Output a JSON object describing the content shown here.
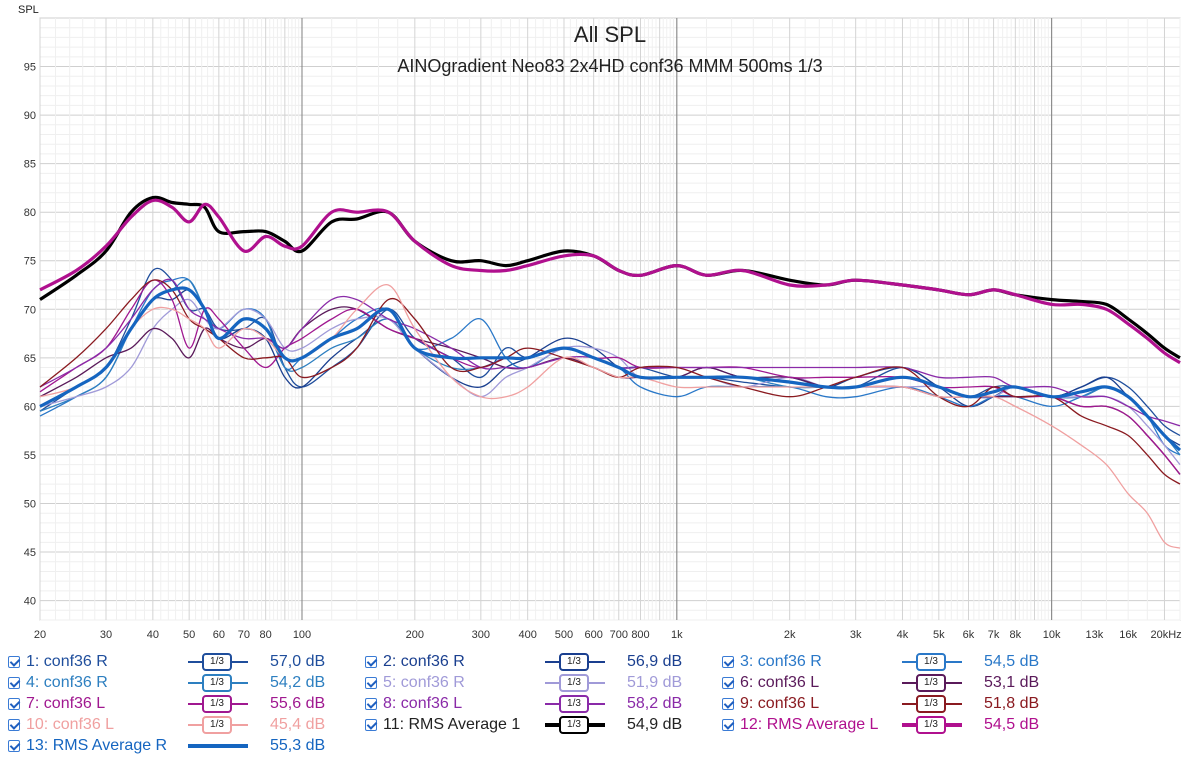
{
  "chart_data": {
    "type": "line",
    "title": "All SPL",
    "subtitle": "AINOgradient Neo83 2x4HD conf36 MMM 500ms 1/3",
    "ylabel": "SPL",
    "xlabel_unit": "Hz",
    "x_scale": "log",
    "xlim": [
      20,
      22000
    ],
    "ylim": [
      38,
      100
    ],
    "grid": true,
    "y_ticks": [
      40,
      45,
      50,
      55,
      60,
      65,
      70,
      75,
      80,
      85,
      90,
      95
    ],
    "x_ticks": [
      {
        "v": 20,
        "label": "20"
      },
      {
        "v": 30,
        "label": "30"
      },
      {
        "v": 40,
        "label": "40"
      },
      {
        "v": 50,
        "label": "50"
      },
      {
        "v": 60,
        "label": "60"
      },
      {
        "v": 70,
        "label": "70"
      },
      {
        "v": 80,
        "label": "80"
      },
      {
        "v": 100,
        "label": "100"
      },
      {
        "v": 200,
        "label": "200"
      },
      {
        "v": 300,
        "label": "300"
      },
      {
        "v": 400,
        "label": "400"
      },
      {
        "v": 500,
        "label": "500"
      },
      {
        "v": 600,
        "label": "600"
      },
      {
        "v": 700,
        "label": "700"
      },
      {
        "v": 800,
        "label": "800"
      },
      {
        "v": 1000,
        "label": "1k"
      },
      {
        "v": 2000,
        "label": "2k"
      },
      {
        "v": 3000,
        "label": "3k"
      },
      {
        "v": 4000,
        "label": "4k"
      },
      {
        "v": 5000,
        "label": "5k"
      },
      {
        "v": 6000,
        "label": "6k"
      },
      {
        "v": 7000,
        "label": "7k"
      },
      {
        "v": 8000,
        "label": "8k"
      },
      {
        "v": 10000,
        "label": "10k"
      },
      {
        "v": 13000,
        "label": "13k"
      },
      {
        "v": 16000,
        "label": "16k"
      },
      {
        "v": 20000,
        "label": "20kHz"
      }
    ],
    "x": [
      20,
      25,
      30,
      35,
      40,
      45,
      50,
      55,
      60,
      70,
      80,
      90,
      100,
      120,
      140,
      170,
      200,
      250,
      300,
      350,
      400,
      500,
      600,
      700,
      800,
      1000,
      1200,
      1500,
      2000,
      2500,
      3000,
      4000,
      5000,
      6000,
      7000,
      8000,
      10000,
      12000,
      14000,
      16000,
      18000,
      20000,
      22000
    ],
    "series": [
      {
        "name": "1: conf36 R",
        "color": "#1f4e9c",
        "width": 1.3,
        "values": [
          59.5,
          62,
          64,
          69,
          74,
          73,
          70,
          70,
          68,
          68,
          69,
          64,
          62,
          64,
          66,
          70,
          67,
          65,
          63,
          66,
          65,
          66,
          65,
          64,
          64,
          63,
          63,
          62.5,
          62,
          62,
          62,
          64,
          62,
          61,
          62,
          62,
          61,
          62,
          63,
          62,
          60,
          58,
          57
        ]
      },
      {
        "name": "2: conf36 R",
        "color": "#1a3f8f",
        "width": 1.3,
        "values": [
          60,
          62,
          64,
          68,
          71,
          71,
          72,
          70,
          67,
          68,
          67,
          63,
          62,
          65,
          67,
          69,
          66,
          63,
          62,
          64,
          65,
          67,
          66,
          64,
          63,
          63,
          64,
          63,
          63,
          62,
          63,
          64,
          62,
          60,
          61,
          62,
          61,
          62,
          63,
          61,
          59,
          57,
          56
        ]
      },
      {
        "name": "3: conf36 R",
        "color": "#2a78c8",
        "width": 1.3,
        "values": [
          59,
          61,
          63,
          68,
          72,
          73,
          73,
          70,
          68,
          70,
          69,
          64,
          65,
          67,
          69,
          70,
          66,
          67,
          69,
          65,
          64,
          66,
          65,
          64,
          62,
          61,
          62,
          62,
          62,
          61,
          61,
          62,
          61,
          60,
          61,
          61,
          60,
          61,
          62,
          61,
          59,
          56,
          55
        ]
      },
      {
        "name": "4: conf36 R",
        "color": "#2d7fc0",
        "width": 1.3,
        "values": [
          59.5,
          61,
          63,
          68,
          71,
          72,
          73,
          70,
          67,
          69,
          68,
          64,
          64,
          66,
          67,
          69,
          66,
          64,
          64,
          65,
          65,
          66,
          65,
          64,
          63,
          63,
          63,
          63,
          62,
          62,
          62,
          63,
          62,
          61,
          61,
          62,
          61,
          61,
          62,
          61,
          59,
          57,
          55
        ]
      },
      {
        "name": "5: conf36 R",
        "color": "#a09ad8",
        "width": 1.3,
        "values": [
          60,
          61,
          62,
          64,
          68,
          70,
          71,
          69,
          68,
          70,
          69,
          66,
          66,
          68,
          69,
          69,
          66,
          63,
          61,
          63,
          64,
          66,
          66,
          65,
          63,
          63,
          63,
          62,
          63,
          62,
          62,
          62,
          62,
          61,
          61,
          62,
          61,
          61,
          61,
          60,
          58,
          56,
          54
        ]
      },
      {
        "name": "6: conf36 L",
        "color": "#5a1a5a",
        "width": 1.3,
        "values": [
          61,
          63,
          65,
          66,
          68,
          67,
          65,
          68,
          67,
          66,
          67,
          66,
          68,
          70,
          70,
          68,
          67,
          66,
          65,
          64,
          64,
          65,
          64,
          63,
          63,
          63,
          64,
          63,
          63,
          62,
          62,
          62,
          61,
          61,
          61,
          61,
          61,
          60,
          60,
          59,
          57,
          55,
          53
        ]
      },
      {
        "name": "7: conf36 L",
        "color": "#a01890",
        "width": 1.3,
        "values": [
          61.5,
          64,
          66,
          70,
          73,
          71,
          66,
          70,
          69,
          66,
          64,
          66,
          67,
          69,
          70,
          68,
          67,
          65,
          64,
          65,
          65,
          66,
          65,
          65,
          64,
          64,
          64,
          64,
          63,
          63,
          63,
          63,
          62,
          62,
          62,
          61,
          61,
          60,
          60,
          59,
          57,
          55,
          53
        ]
      },
      {
        "name": "8: conf36 L",
        "color": "#8a2aa8",
        "width": 1.3,
        "values": [
          62,
          64,
          66,
          69,
          72,
          73,
          70,
          69,
          68,
          67,
          67,
          66,
          68,
          71,
          71,
          69,
          68,
          66,
          64,
          64,
          64,
          65,
          65,
          64,
          64,
          64,
          64,
          64,
          64,
          64,
          64,
          64,
          63,
          63,
          63,
          62,
          62,
          61,
          61,
          60,
          59,
          58.5,
          58
        ]
      },
      {
        "name": "9: conf36 L",
        "color": "#8a1a20",
        "width": 1.3,
        "values": [
          62,
          65,
          68,
          71,
          73,
          72,
          69,
          68,
          67,
          65,
          65,
          65,
          63,
          64,
          66,
          71,
          69,
          64,
          64,
          65,
          66,
          65,
          64,
          63,
          64,
          64,
          63,
          62,
          61,
          62,
          63,
          64,
          61,
          60,
          62,
          61,
          61,
          59,
          58,
          57,
          55,
          53,
          52
        ]
      },
      {
        "name": "10: conf36 L",
        "color": "#f0a0a0",
        "width": 1.3,
        "values": [
          61,
          62,
          64,
          68,
          70,
          70,
          69,
          68,
          66,
          68,
          67,
          65,
          65,
          67,
          70,
          72.5,
          68,
          63,
          61,
          61,
          62,
          65,
          64,
          63,
          63,
          62,
          62,
          62,
          62,
          62,
          62,
          62,
          61,
          61,
          61,
          60,
          58,
          56,
          54,
          51,
          49,
          46,
          45.4
        ]
      },
      {
        "name": "11: RMS Average 1",
        "color": "#000000",
        "width": 3.2,
        "values": [
          71,
          73.5,
          76,
          80,
          81.5,
          81,
          80.8,
          80.5,
          78,
          78,
          78,
          77,
          76,
          79,
          79.3,
          80,
          77,
          75,
          75,
          74.5,
          75,
          76,
          75.5,
          74,
          73.5,
          74.5,
          73.5,
          74,
          73,
          72.5,
          73,
          72.5,
          72,
          71.5,
          72,
          71.5,
          71,
          70.8,
          70.5,
          69,
          67.5,
          66,
          65
        ]
      },
      {
        "name": "12: RMS Average L",
        "color": "#b0108e",
        "width": 3.2,
        "values": [
          72,
          74,
          76.5,
          79.5,
          81.2,
          80.5,
          79,
          80.8,
          79.5,
          76,
          77.5,
          76.5,
          76.5,
          80,
          80,
          80,
          77,
          74.5,
          74,
          74,
          74.5,
          75.5,
          75.5,
          74,
          73.5,
          74.5,
          73.5,
          74,
          72.5,
          72.5,
          73,
          72.5,
          72,
          71.5,
          72,
          71.5,
          70.5,
          70.5,
          70,
          68.5,
          67,
          65.5,
          64.5
        ]
      },
      {
        "name": "13: RMS Average R",
        "color": "#1565c0",
        "width": 3.2,
        "values": [
          60,
          62,
          64,
          68,
          71,
          72,
          72,
          70,
          67,
          69,
          68,
          65,
          65,
          67,
          68,
          70,
          66,
          65,
          65,
          65,
          65,
          66,
          65,
          64,
          63,
          63,
          63,
          63,
          62.5,
          62,
          62,
          63,
          62,
          61,
          61.5,
          62,
          61,
          61.5,
          62,
          61,
          59,
          57,
          55.5
        ]
      }
    ]
  },
  "legend": {
    "items": [
      {
        "label": "1: conf36 R",
        "value": "57,0 dB",
        "color": "#1f4e9c",
        "thick": false
      },
      {
        "label": "2: conf36 R",
        "value": "56,9 dB",
        "color": "#1a3f8f",
        "thick": false
      },
      {
        "label": "3: conf36 R",
        "value": "54,5 dB",
        "color": "#2a78c8",
        "thick": false
      },
      {
        "label": "4: conf36 R",
        "value": "54,2 dB",
        "color": "#2d7fc0",
        "thick": false
      },
      {
        "label": "5: conf36 R",
        "value": "51,9 dB",
        "color": "#a09ad8",
        "thick": false
      },
      {
        "label": "6: conf36 L",
        "value": "53,1 dB",
        "color": "#5a1a5a",
        "thick": false
      },
      {
        "label": "7: conf36 L",
        "value": "55,6 dB",
        "color": "#a01890",
        "thick": false
      },
      {
        "label": "8: conf36 L",
        "value": "58,2 dB",
        "color": "#8a2aa8",
        "thick": false
      },
      {
        "label": "9: conf36 L",
        "value": "51,8 dB",
        "color": "#8a1a20",
        "thick": false
      },
      {
        "label": "10: conf36 L",
        "value": "45,4 dB",
        "color": "#f0a0a0",
        "thick": false
      },
      {
        "label": "11: RMS Average 1",
        "value": "54,9 dB",
        "color": "#000000",
        "thick": true
      },
      {
        "label": "12: RMS Average L",
        "value": "54,5 dB",
        "color": "#b0108e",
        "thick": true
      },
      {
        "label": "13: RMS Average R",
        "value": "55,3 dB",
        "color": "#1565c0",
        "thick": true
      }
    ],
    "smoothing_label": "1/3"
  }
}
